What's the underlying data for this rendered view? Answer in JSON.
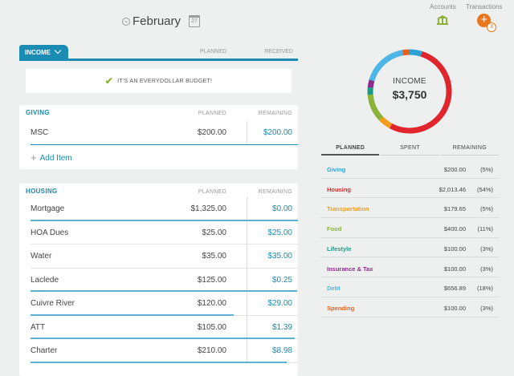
{
  "header": {
    "month": "February",
    "calendar_day": "27",
    "accounts_label": "Accounts",
    "transactions_label": "Transactions",
    "transactions_count": "8",
    "add_symbol": "+"
  },
  "income": {
    "tab_label": "INCOME",
    "planned_header": "PLANNED",
    "received_header": "RECEIVED",
    "banner": "IT'S AN EVERYDOLLAR BUDGET!"
  },
  "giving": {
    "tab_label": "GIVING",
    "planned_header": "PLANNED",
    "remaining_header": "REMAINING",
    "items": [
      {
        "name": "MSC",
        "planned": "$200.00",
        "remaining": "$200.00"
      }
    ],
    "add_item_label": "Add Item"
  },
  "housing": {
    "tab_label": "HOUSING",
    "planned_header": "PLANNED",
    "remaining_header": "REMAINING",
    "items": [
      {
        "name": "Mortgage",
        "planned": "$1,325.00",
        "remaining": "$0.00",
        "spent_fraction": 1.0
      },
      {
        "name": "HOA Dues",
        "planned": "$25.00",
        "remaining": "$25.00",
        "spent_fraction": 0.0
      },
      {
        "name": "Water",
        "planned": "$35.00",
        "remaining": "$35.00",
        "spent_fraction": 0.0
      },
      {
        "name": "Laclede",
        "planned": "$125.00",
        "remaining": "$0.25",
        "spent_fraction": 0.998
      },
      {
        "name": "Cuivre River",
        "planned": "$120.00",
        "remaining": "$29.00",
        "spent_fraction": 0.76
      },
      {
        "name": "ATT",
        "planned": "$105.00",
        "remaining": "$1.39",
        "spent_fraction": 0.987
      },
      {
        "name": "Charter",
        "planned": "$210.00",
        "remaining": "$8.98",
        "spent_fraction": 0.957
      }
    ]
  },
  "summary": {
    "donut_title": "INCOME",
    "donut_value": "$3,750",
    "tabs": [
      "PLANNED",
      "SPENT",
      "REMAINING"
    ],
    "active_tab": "PLANNED",
    "rows": [
      {
        "name": "Giving",
        "amount": "$200.00",
        "percent": "(5%)",
        "color": "#2aa3d4",
        "share": 5
      },
      {
        "name": "Housing",
        "amount": "$2,013.46",
        "percent": "(54%)",
        "color": "#e0262c",
        "share": 54
      },
      {
        "name": "Transportation",
        "amount": "$179.65",
        "percent": "(5%)",
        "color": "#f39c1c",
        "share": 5
      },
      {
        "name": "Food",
        "amount": "$400.00",
        "percent": "(11%)",
        "color": "#8bb33a",
        "share": 11
      },
      {
        "name": "Lifestyle",
        "amount": "$100.00",
        "percent": "(3%)",
        "color": "#1c9a84",
        "share": 3
      },
      {
        "name": "Insurance & Tax",
        "amount": "$100.00",
        "percent": "(3%)",
        "color": "#8e2c8c",
        "share": 3
      },
      {
        "name": "Debt",
        "amount": "$656.89",
        "percent": "(18%)",
        "color": "#4cb6e6",
        "share": 18
      },
      {
        "name": "Spending",
        "amount": "$100.00",
        "percent": "(3%)",
        "color": "#e8621d",
        "share": 3
      }
    ]
  }
}
